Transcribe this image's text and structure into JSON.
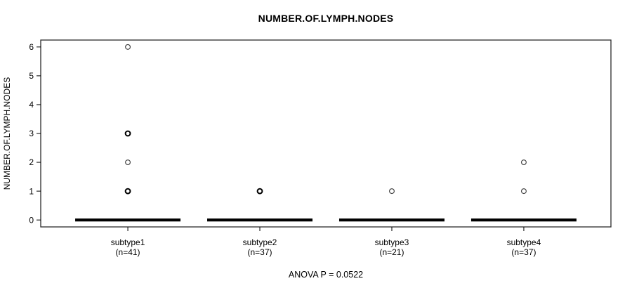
{
  "figure": {
    "title": "NUMBER.OF.LYMPH.NODES",
    "caption": "ANOVA P = 0.0522"
  },
  "chart_data": {
    "type": "boxplot",
    "title": "NUMBER.OF.LYMPH.NODES",
    "xlabel": "",
    "ylabel": "NUMBER.OF.LYMPH.NODES",
    "caption": "ANOVA P = 0.0522",
    "ylim": [
      0,
      6
    ],
    "yticks": [
      0,
      1,
      2,
      3,
      4,
      5,
      6
    ],
    "grid": false,
    "legend": "none",
    "groups": [
      {
        "label": "subtype1",
        "n_label": "(n=41)",
        "n": 41,
        "median": 0,
        "q1": 0,
        "q3": 0,
        "whisker_low": 0,
        "whisker_high": 0,
        "outliers": [
          {
            "value": 6,
            "overplotted": false
          },
          {
            "value": 3,
            "overplotted": true
          },
          {
            "value": 2,
            "overplotted": false
          },
          {
            "value": 1,
            "overplotted": true
          }
        ]
      },
      {
        "label": "subtype2",
        "n_label": "(n=37)",
        "n": 37,
        "median": 0,
        "q1": 0,
        "q3": 0,
        "whisker_low": 0,
        "whisker_high": 0,
        "outliers": [
          {
            "value": 1,
            "overplotted": true
          }
        ]
      },
      {
        "label": "subtype3",
        "n_label": "(n=21)",
        "n": 21,
        "median": 0,
        "q1": 0,
        "q3": 0,
        "whisker_low": 0,
        "whisker_high": 0,
        "outliers": [
          {
            "value": 1,
            "overplotted": false
          }
        ]
      },
      {
        "label": "subtype4",
        "n_label": "(n=37)",
        "n": 37,
        "median": 0,
        "q1": 0,
        "q3": 0,
        "whisker_low": 0,
        "whisker_high": 0,
        "outliers": [
          {
            "value": 2,
            "overplotted": false
          },
          {
            "value": 1,
            "overplotted": false
          }
        ]
      }
    ]
  }
}
